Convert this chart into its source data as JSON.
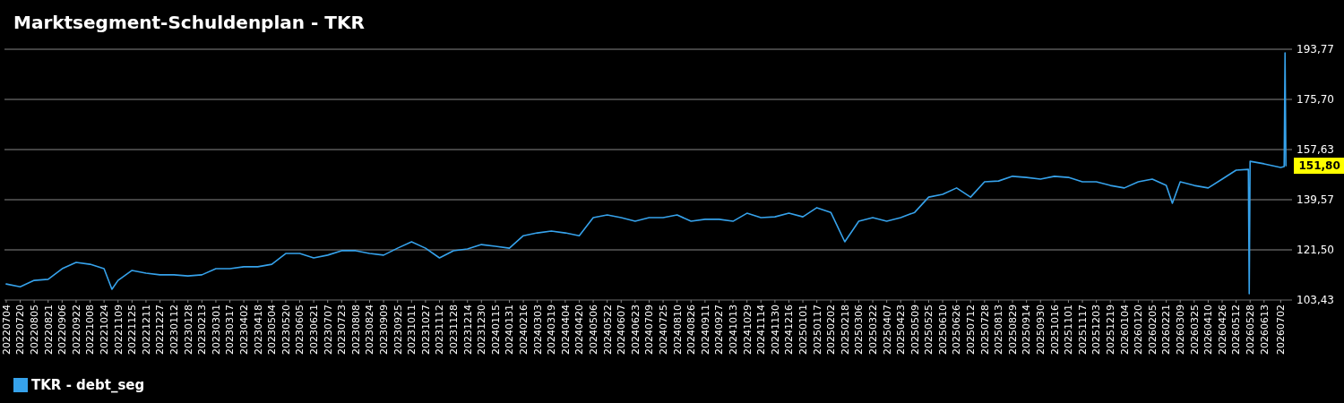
{
  "chart_data": {
    "type": "line",
    "title": "Marktsegment-Schuldenplan - TKR",
    "x": [
      "2022-07-04",
      "2022-07-20",
      "2022-08-05",
      "2022-08-21",
      "2022-09-06",
      "2022-09-22",
      "2022-10-08",
      "2022-10-24",
      "2022-11-02",
      "2022-11-09",
      "2022-11-25",
      "2022-12-11",
      "2022-12-27",
      "2023-01-12",
      "2023-01-28",
      "2023-02-13",
      "2023-03-01",
      "2023-03-17",
      "2023-04-02",
      "2023-04-18",
      "2023-05-04",
      "2023-05-20",
      "2023-06-05",
      "2023-06-21",
      "2023-07-07",
      "2023-07-23",
      "2023-08-08",
      "2023-08-24",
      "2023-09-09",
      "2023-09-25",
      "2023-10-11",
      "2023-10-27",
      "2023-11-12",
      "2023-11-28",
      "2023-12-14",
      "2023-12-30",
      "2024-01-15",
      "2024-01-31",
      "2024-02-16",
      "2024-03-03",
      "2024-03-19",
      "2024-04-04",
      "2024-04-20",
      "2024-05-06",
      "2024-05-22",
      "2024-06-07",
      "2024-06-23",
      "2024-07-09",
      "2024-07-25",
      "2024-08-10",
      "2024-08-26",
      "2024-09-11",
      "2024-09-27",
      "2024-10-13",
      "2024-10-29",
      "2024-11-14",
      "2024-11-30",
      "2024-12-16",
      "2025-01-01",
      "2025-01-17",
      "2025-02-02",
      "2025-02-18",
      "2025-03-06",
      "2025-03-22",
      "2025-04-07",
      "2025-04-23",
      "2025-05-09",
      "2025-05-25",
      "2025-06-10",
      "2025-06-26",
      "2025-07-12",
      "2025-07-28",
      "2025-08-13",
      "2025-08-29",
      "2025-09-14",
      "2025-09-30",
      "2025-10-16",
      "2025-11-01",
      "2025-11-17",
      "2025-12-03",
      "2025-12-19",
      "2026-01-04",
      "2026-01-20",
      "2026-02-05",
      "2026-02-21",
      "2026-02-28",
      "2026-03-09",
      "2026-03-25",
      "2026-04-10",
      "2026-04-26",
      "2026-05-12",
      "2026-05-26",
      "2026-05-27",
      "2026-05-28",
      "2026-06-13",
      "2026-07-02",
      "2026-07-06",
      "2026-07-07",
      "2026-07-08"
    ],
    "series": [
      {
        "name": "TKR - debt_seg",
        "color": "#36a2eb",
        "values": [
          109.2,
          108.2,
          110.5,
          110.9,
          114.7,
          117.0,
          116.3,
          114.7,
          107.3,
          110.5,
          114.1,
          113.1,
          112.5,
          112.5,
          112.1,
          112.5,
          114.7,
          114.7,
          115.4,
          115.4,
          116.3,
          120.2,
          120.2,
          118.6,
          119.6,
          121.2,
          121.2,
          120.2,
          119.6,
          122.1,
          124.4,
          122.1,
          118.6,
          121.2,
          121.8,
          123.4,
          122.8,
          122.1,
          126.6,
          127.6,
          128.3,
          127.6,
          126.6,
          133.1,
          134.1,
          133.1,
          131.8,
          133.1,
          133.1,
          134.1,
          131.8,
          132.5,
          132.5,
          131.8,
          134.7,
          133.1,
          133.4,
          134.7,
          133.4,
          136.7,
          135.0,
          124.4,
          131.8,
          133.1,
          131.8,
          133.1,
          135.0,
          140.5,
          141.5,
          143.8,
          140.5,
          146.0,
          146.3,
          148.0,
          147.6,
          147.0,
          148.0,
          147.6,
          146.0,
          146.0,
          144.7,
          143.8,
          146.0,
          147.0,
          144.7,
          138.3,
          146.0,
          144.7,
          143.8,
          147.0,
          150.2,
          150.5,
          105.7,
          153.4,
          152.5,
          151.2,
          151.5,
          192.5,
          151.8
        ]
      }
    ],
    "xlim": [
      "2022-07-02",
      "2026-07-15"
    ],
    "xticks": [
      {
        "value": "2022-07-04",
        "label": "20220704"
      },
      {
        "value": "2022-07-20",
        "label": "20220720"
      },
      {
        "value": "2022-08-05",
        "label": "20220805"
      },
      {
        "value": "2022-08-21",
        "label": "20220821"
      },
      {
        "value": "2022-09-06",
        "label": "20220906"
      },
      {
        "value": "2022-09-22",
        "label": "20220922"
      },
      {
        "value": "2022-10-08",
        "label": "20221008"
      },
      {
        "value": "2022-10-24",
        "label": "20221024"
      },
      {
        "value": "2022-11-09",
        "label": "20221109"
      },
      {
        "value": "2022-11-25",
        "label": "20221125"
      },
      {
        "value": "2022-12-11",
        "label": "20221211"
      },
      {
        "value": "2022-12-27",
        "label": "20221227"
      },
      {
        "value": "2023-01-12",
        "label": "20230112"
      },
      {
        "value": "2023-01-28",
        "label": "20230128"
      },
      {
        "value": "2023-02-13",
        "label": "20230213"
      },
      {
        "value": "2023-03-01",
        "label": "20230301"
      },
      {
        "value": "2023-03-17",
        "label": "20230317"
      },
      {
        "value": "2023-04-02",
        "label": "20230402"
      },
      {
        "value": "2023-04-18",
        "label": "20230418"
      },
      {
        "value": "2023-05-04",
        "label": "20230504"
      },
      {
        "value": "2023-05-20",
        "label": "20230520"
      },
      {
        "value": "2023-06-05",
        "label": "20230605"
      },
      {
        "value": "2023-06-21",
        "label": "20230621"
      },
      {
        "value": "2023-07-07",
        "label": "20230707"
      },
      {
        "value": "2023-07-23",
        "label": "20230723"
      },
      {
        "value": "2023-08-08",
        "label": "20230808"
      },
      {
        "value": "2023-08-24",
        "label": "20230824"
      },
      {
        "value": "2023-09-09",
        "label": "20230909"
      },
      {
        "value": "2023-09-25",
        "label": "20230925"
      },
      {
        "value": "2023-10-11",
        "label": "20231011"
      },
      {
        "value": "2023-10-27",
        "label": "20231027"
      },
      {
        "value": "2023-11-12",
        "label": "20231112"
      },
      {
        "value": "2023-11-28",
        "label": "20231128"
      },
      {
        "value": "2023-12-14",
        "label": "20231214"
      },
      {
        "value": "2023-12-30",
        "label": "20231230"
      },
      {
        "value": "2024-01-15",
        "label": "20240115"
      },
      {
        "value": "2024-01-31",
        "label": "20240131"
      },
      {
        "value": "2024-02-16",
        "label": "20240216"
      },
      {
        "value": "2024-03-03",
        "label": "20240303"
      },
      {
        "value": "2024-03-19",
        "label": "20240319"
      },
      {
        "value": "2024-04-04",
        "label": "20240404"
      },
      {
        "value": "2024-04-20",
        "label": "20240420"
      },
      {
        "value": "2024-05-06",
        "label": "20240506"
      },
      {
        "value": "2024-05-22",
        "label": "20240522"
      },
      {
        "value": "2024-06-07",
        "label": "20240607"
      },
      {
        "value": "2024-06-23",
        "label": "20240623"
      },
      {
        "value": "2024-07-09",
        "label": "20240709"
      },
      {
        "value": "2024-07-25",
        "label": "20240725"
      },
      {
        "value": "2024-08-10",
        "label": "20240810"
      },
      {
        "value": "2024-08-26",
        "label": "20240826"
      },
      {
        "value": "2024-09-11",
        "label": "20240911"
      },
      {
        "value": "2024-09-27",
        "label": "20240927"
      },
      {
        "value": "2024-10-13",
        "label": "20241013"
      },
      {
        "value": "2024-10-29",
        "label": "20241029"
      },
      {
        "value": "2024-11-14",
        "label": "20241114"
      },
      {
        "value": "2024-11-30",
        "label": "20241130"
      },
      {
        "value": "2024-12-16",
        "label": "20241216"
      },
      {
        "value": "2025-01-01",
        "label": "20250101"
      },
      {
        "value": "2025-01-17",
        "label": "20250117"
      },
      {
        "value": "2025-02-02",
        "label": "20250202"
      },
      {
        "value": "2025-02-18",
        "label": "20250218"
      },
      {
        "value": "2025-03-06",
        "label": "20250306"
      },
      {
        "value": "2025-03-22",
        "label": "20250322"
      },
      {
        "value": "2025-04-07",
        "label": "20250407"
      },
      {
        "value": "2025-04-23",
        "label": "20250423"
      },
      {
        "value": "2025-05-09",
        "label": "20250509"
      },
      {
        "value": "2025-05-25",
        "label": "20250525"
      },
      {
        "value": "2025-06-10",
        "label": "20250610"
      },
      {
        "value": "2025-06-26",
        "label": "20250626"
      },
      {
        "value": "2025-07-12",
        "label": "20250712"
      },
      {
        "value": "2025-07-28",
        "label": "20250728"
      },
      {
        "value": "2025-08-13",
        "label": "20250813"
      },
      {
        "value": "2025-08-29",
        "label": "20250829"
      },
      {
        "value": "2025-09-14",
        "label": "20250914"
      },
      {
        "value": "2025-09-30",
        "label": "20250930"
      },
      {
        "value": "2025-10-16",
        "label": "20251016"
      },
      {
        "value": "2025-11-01",
        "label": "20251101"
      },
      {
        "value": "2025-11-17",
        "label": "20251117"
      },
      {
        "value": "2025-12-03",
        "label": "20251203"
      },
      {
        "value": "2025-12-19",
        "label": "20251219"
      },
      {
        "value": "2026-01-04",
        "label": "20260104"
      },
      {
        "value": "2026-01-20",
        "label": "20260120"
      },
      {
        "value": "2026-02-05",
        "label": "20260205"
      },
      {
        "value": "2026-02-21",
        "label": "20260221"
      },
      {
        "value": "2026-03-09",
        "label": "20260309"
      },
      {
        "value": "2026-03-25",
        "label": "20260325"
      },
      {
        "value": "2026-04-10",
        "label": "20260410"
      },
      {
        "value": "2026-04-26",
        "label": "20260426"
      },
      {
        "value": "2026-05-12",
        "label": "20260512"
      },
      {
        "value": "2026-05-28",
        "label": "20260528"
      },
      {
        "value": "2026-06-13",
        "label": "20260613"
      },
      {
        "value": "2026-07-02",
        "label": "20260702"
      }
    ],
    "ylim": [
      103.43,
      193.77
    ],
    "yticks": [
      {
        "value": 103.43,
        "label": "103,43"
      },
      {
        "value": 121.5,
        "label": "121,50"
      },
      {
        "value": 139.57,
        "label": "139,57"
      },
      {
        "value": 157.63,
        "label": "157,63"
      },
      {
        "value": 175.7,
        "label": "175,70"
      },
      {
        "value": 193.77,
        "label": "193,77"
      }
    ],
    "annotations": [
      "151,80"
    ],
    "grid": "y",
    "legend": "bottom",
    "line_style": "solid",
    "marker": "none"
  }
}
